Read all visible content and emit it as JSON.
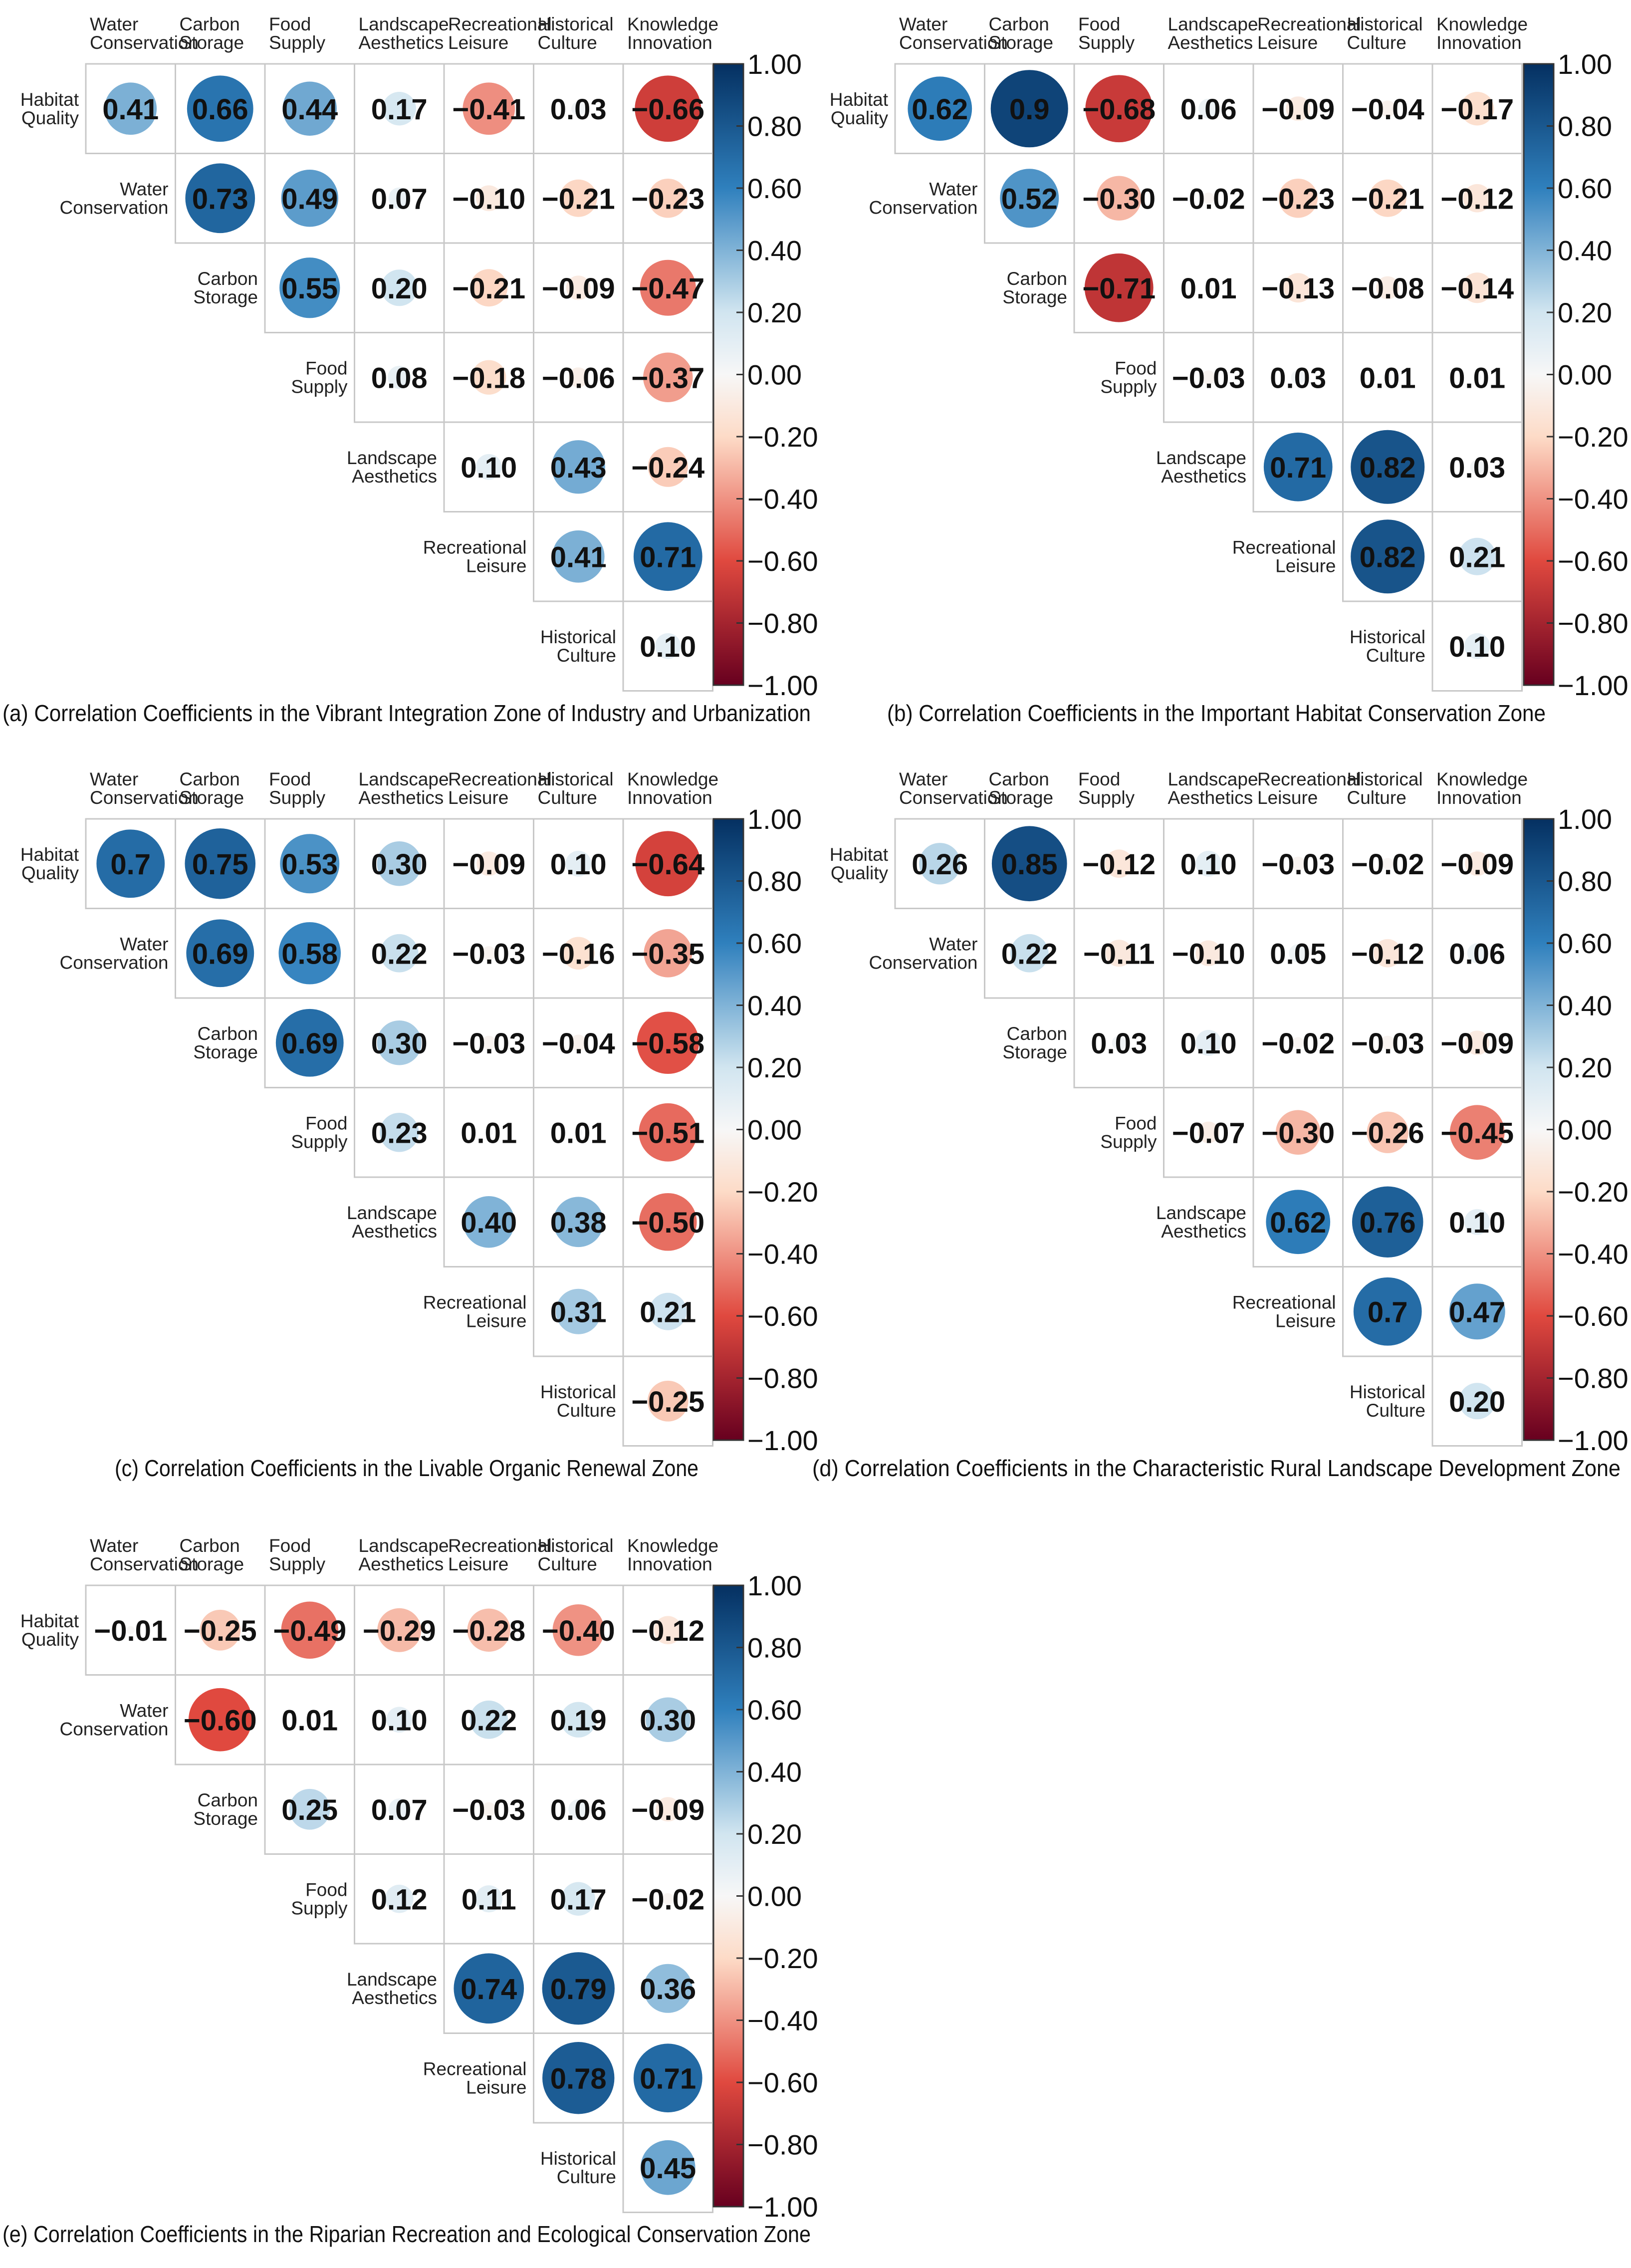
{
  "colorbar": {
    "ticks": [
      "1.00",
      "0.80",
      "0.60",
      "0.40",
      "0.20",
      "0.00",
      "−0.20",
      "−0.40",
      "−0.60",
      "−0.80",
      "−1.00"
    ],
    "colors": {
      "pos_strong": "#053061",
      "pos_mid": "#2f80bd",
      "pos_light": "#d1e5f0",
      "neutral": "#f7f7f7",
      "neg_light": "#fddbc7",
      "neg_mid": "#e0493f",
      "neg_strong": "#67001f"
    }
  },
  "chart_data": [
    {
      "type": "heatmap",
      "title": "(a) Correlation Coefficients in the Vibrant Integration Zone of Industry and Urbanization",
      "rows": [
        {
          "l1": "Habitat",
          "l2": "Quality"
        },
        {
          "l1": "Water",
          "l2": "Conservation"
        },
        {
          "l1": "Carbon",
          "l2": "Storage"
        },
        {
          "l1": "Food",
          "l2": "Supply"
        },
        {
          "l1": "Landscape",
          "l2": "Aesthetics"
        },
        {
          "l1": "Recreational",
          "l2": "Leisure"
        },
        {
          "l1": "Historical",
          "l2": "Culture"
        }
      ],
      "cols": [
        {
          "l1": "Water",
          "l2": "Conservation"
        },
        {
          "l1": "Carbon",
          "l2": "Storage"
        },
        {
          "l1": "Food",
          "l2": "Supply"
        },
        {
          "l1": "Landscape",
          "l2": "Aesthetics"
        },
        {
          "l1": "Recreational",
          "l2": "Leisure"
        },
        {
          "l1": "Historical",
          "l2": "Culture"
        },
        {
          "l1": "Knowledge",
          "l2": "Innovation"
        }
      ],
      "values": [
        [
          0.41,
          0.66,
          0.44,
          0.17,
          -0.41,
          0.03,
          -0.66
        ],
        [
          0.73,
          0.49,
          0.07,
          -0.1,
          -0.21,
          -0.23
        ],
        [
          0.55,
          0.2,
          -0.21,
          -0.09,
          -0.47
        ],
        [
          0.08,
          -0.18,
          -0.06,
          -0.37
        ],
        [
          0.1,
          0.43,
          -0.24
        ],
        [
          0.41,
          0.71
        ],
        [
          0.1
        ]
      ],
      "labels": [
        [
          "0.41",
          "0.66",
          "0.44",
          "0.17",
          "−0.41",
          "0.03",
          "−0.66"
        ],
        [
          "0.73",
          "0.49",
          "0.07",
          "−0.10",
          "−0.21",
          "−0.23"
        ],
        [
          "0.55",
          "0.20",
          "−0.21",
          "−0.09",
          "−0.47"
        ],
        [
          "0.08",
          "−0.18",
          "−0.06",
          "−0.37"
        ],
        [
          "0.10",
          "0.43",
          "−0.24"
        ],
        [
          "0.41",
          "0.71"
        ],
        [
          "0.10"
        ]
      ]
    },
    {
      "type": "heatmap",
      "title": "(b) Correlation Coefficients in the Important Habitat Conservation Zone",
      "rows": [
        {
          "l1": "Habitat",
          "l2": "Quality"
        },
        {
          "l1": "Water",
          "l2": "Conservation"
        },
        {
          "l1": "Carbon",
          "l2": "Storage"
        },
        {
          "l1": "Food",
          "l2": "Supply"
        },
        {
          "l1": "Landscape",
          "l2": "Aesthetics"
        },
        {
          "l1": "Recreational",
          "l2": "Leisure"
        },
        {
          "l1": "Historical",
          "l2": "Culture"
        }
      ],
      "cols": [
        {
          "l1": "Water",
          "l2": "Conservation"
        },
        {
          "l1": "Carbon",
          "l2": "Storage"
        },
        {
          "l1": "Food",
          "l2": "Supply"
        },
        {
          "l1": "Landscape",
          "l2": "Aesthetics"
        },
        {
          "l1": "Recreational",
          "l2": "Leisure"
        },
        {
          "l1": "Historical",
          "l2": "Culture"
        },
        {
          "l1": "Knowledge",
          "l2": "Innovation"
        }
      ],
      "values": [
        [
          0.62,
          0.9,
          -0.68,
          0.06,
          -0.09,
          -0.04,
          -0.17
        ],
        [
          0.52,
          -0.3,
          -0.02,
          -0.23,
          -0.21,
          -0.12
        ],
        [
          -0.71,
          0.01,
          -0.13,
          -0.08,
          -0.14
        ],
        [
          -0.03,
          0.03,
          0.01,
          0.01
        ],
        [
          0.71,
          0.82,
          0.03
        ],
        [
          0.82,
          0.21
        ],
        [
          0.1
        ]
      ],
      "labels": [
        [
          "0.62",
          "0.9",
          "−0.68",
          "0.06",
          "−0.09",
          "−0.04",
          "−0.17"
        ],
        [
          "0.52",
          "−0.30",
          "−0.02",
          "−0.23",
          "−0.21",
          "−0.12"
        ],
        [
          "−0.71",
          "0.01",
          "−0.13",
          "−0.08",
          "−0.14"
        ],
        [
          "−0.03",
          "0.03",
          "0.01",
          "0.01"
        ],
        [
          "0.71",
          "0.82",
          "0.03"
        ],
        [
          "0.82",
          "0.21"
        ],
        [
          "0.10"
        ]
      ]
    },
    {
      "type": "heatmap",
      "title": "(c) Correlation Coefficients in the Livable Organic Renewal Zone",
      "rows": [
        {
          "l1": "Habitat",
          "l2": "Quality"
        },
        {
          "l1": "Water",
          "l2": "Conservation"
        },
        {
          "l1": "Carbon",
          "l2": "Storage"
        },
        {
          "l1": "Food",
          "l2": "Supply"
        },
        {
          "l1": "Landscape",
          "l2": "Aesthetics"
        },
        {
          "l1": "Recreational",
          "l2": "Leisure"
        },
        {
          "l1": "Historical",
          "l2": "Culture"
        }
      ],
      "cols": [
        {
          "l1": "Water",
          "l2": "Conservation"
        },
        {
          "l1": "Carbon",
          "l2": "Storage"
        },
        {
          "l1": "Food",
          "l2": "Supply"
        },
        {
          "l1": "Landscape",
          "l2": "Aesthetics"
        },
        {
          "l1": "Recreational",
          "l2": "Leisure"
        },
        {
          "l1": "Historical",
          "l2": "Culture"
        },
        {
          "l1": "Knowledge",
          "l2": "Innovation"
        }
      ],
      "values": [
        [
          0.7,
          0.75,
          0.53,
          0.3,
          -0.09,
          0.1,
          -0.64
        ],
        [
          0.69,
          0.58,
          0.22,
          -0.03,
          -0.16,
          -0.35
        ],
        [
          0.69,
          0.3,
          -0.03,
          -0.04,
          -0.58
        ],
        [
          0.23,
          0.01,
          0.01,
          -0.51
        ],
        [
          0.4,
          0.38,
          -0.5
        ],
        [
          0.31,
          0.21
        ],
        [
          -0.25
        ]
      ],
      "labels": [
        [
          "0.7",
          "0.75",
          "0.53",
          "0.30",
          "−0.09",
          "0.10",
          "−0.64"
        ],
        [
          "0.69",
          "0.58",
          "0.22",
          "−0.03",
          "−0.16",
          "−0.35"
        ],
        [
          "0.69",
          "0.30",
          "−0.03",
          "−0.04",
          "−0.58"
        ],
        [
          "0.23",
          "0.01",
          "0.01",
          "−0.51"
        ],
        [
          "0.40",
          "0.38",
          "−0.50"
        ],
        [
          "0.31",
          "0.21"
        ],
        [
          "−0.25"
        ]
      ]
    },
    {
      "type": "heatmap",
      "title": "(d) Correlation Coefficients in the Characteristic Rural Landscape Development Zone",
      "rows": [
        {
          "l1": "Habitat",
          "l2": "Quality"
        },
        {
          "l1": "Water",
          "l2": "Conservation"
        },
        {
          "l1": "Carbon",
          "l2": "Storage"
        },
        {
          "l1": "Food",
          "l2": "Supply"
        },
        {
          "l1": "Landscape",
          "l2": "Aesthetics"
        },
        {
          "l1": "Recreational",
          "l2": "Leisure"
        },
        {
          "l1": "Historical",
          "l2": "Culture"
        }
      ],
      "cols": [
        {
          "l1": "Water",
          "l2": "Conservation"
        },
        {
          "l1": "Carbon",
          "l2": "Storage"
        },
        {
          "l1": "Food",
          "l2": "Supply"
        },
        {
          "l1": "Landscape",
          "l2": "Aesthetics"
        },
        {
          "l1": "Recreational",
          "l2": "Leisure"
        },
        {
          "l1": "Historical",
          "l2": "Culture"
        },
        {
          "l1": "Knowledge",
          "l2": "Innovation"
        }
      ],
      "values": [
        [
          0.26,
          0.85,
          -0.12,
          0.1,
          -0.03,
          -0.02,
          -0.09
        ],
        [
          0.22,
          -0.11,
          -0.1,
          0.05,
          -0.12,
          0.06
        ],
        [
          0.03,
          0.1,
          -0.02,
          -0.03,
          -0.09
        ],
        [
          -0.07,
          -0.3,
          -0.26,
          -0.45
        ],
        [
          0.62,
          0.76,
          0.1
        ],
        [
          0.7,
          0.47
        ],
        [
          0.2
        ]
      ],
      "labels": [
        [
          "0.26",
          "0.85",
          "−0.12",
          "0.10",
          "−0.03",
          "−0.02",
          "−0.09"
        ],
        [
          "0.22",
          "−0.11",
          "−0.10",
          "0.05",
          "−0.12",
          "0.06"
        ],
        [
          "0.03",
          "0.10",
          "−0.02",
          "−0.03",
          "−0.09"
        ],
        [
          "−0.07",
          "−0.30",
          "−0.26",
          "−0.45"
        ],
        [
          "0.62",
          "0.76",
          "0.10"
        ],
        [
          "0.7",
          "0.47"
        ],
        [
          "0.20"
        ]
      ]
    },
    {
      "type": "heatmap",
      "title": "(e) Correlation Coefficients in the Riparian Recreation and Ecological Conservation Zone",
      "rows": [
        {
          "l1": "Habitat",
          "l2": "Quality"
        },
        {
          "l1": "Water",
          "l2": "Conservation"
        },
        {
          "l1": "Carbon",
          "l2": "Storage"
        },
        {
          "l1": "Food",
          "l2": "Supply"
        },
        {
          "l1": "Landscape",
          "l2": "Aesthetics"
        },
        {
          "l1": "Recreational",
          "l2": "Leisure"
        },
        {
          "l1": "Historical",
          "l2": "Culture"
        }
      ],
      "cols": [
        {
          "l1": "Water",
          "l2": "Conservation"
        },
        {
          "l1": "Carbon",
          "l2": "Storage"
        },
        {
          "l1": "Food",
          "l2": "Supply"
        },
        {
          "l1": "Landscape",
          "l2": "Aesthetics"
        },
        {
          "l1": "Recreational",
          "l2": "Leisure"
        },
        {
          "l1": "Historical",
          "l2": "Culture"
        },
        {
          "l1": "Knowledge",
          "l2": "Innovation"
        }
      ],
      "values": [
        [
          -0.01,
          -0.25,
          -0.49,
          -0.29,
          -0.28,
          -0.4,
          -0.12
        ],
        [
          -0.6,
          0.01,
          0.1,
          0.22,
          0.19,
          0.3
        ],
        [
          0.25,
          0.07,
          -0.03,
          0.06,
          -0.09
        ],
        [
          0.12,
          0.11,
          0.17,
          -0.02
        ],
        [
          0.74,
          0.79,
          0.36
        ],
        [
          0.78,
          0.71
        ],
        [
          0.45
        ]
      ],
      "labels": [
        [
          "−0.01",
          "−0.25",
          "−0.49",
          "−0.29",
          "−0.28",
          "−0.40",
          "−0.12"
        ],
        [
          "−0.60",
          "0.01",
          "0.10",
          "0.22",
          "0.19",
          "0.30"
        ],
        [
          "0.25",
          "0.07",
          "−0.03",
          "0.06",
          "−0.09"
        ],
        [
          "0.12",
          "0.11",
          "0.17",
          "−0.02"
        ],
        [
          "0.74",
          "0.79",
          "0.36"
        ],
        [
          "0.78",
          "0.71"
        ],
        [
          "0.45"
        ]
      ]
    }
  ]
}
